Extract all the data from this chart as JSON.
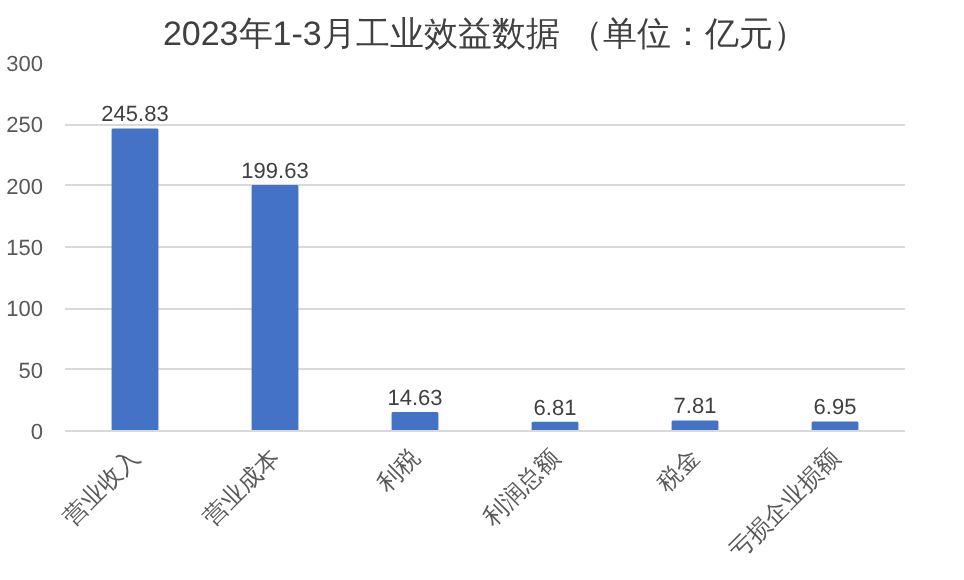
{
  "chart_data": {
    "type": "bar",
    "title": "2023年1-3月工业效益数据 （单位：亿元）",
    "categories": [
      "营业收入",
      "营业成本",
      "利税",
      "利润总额",
      "税金",
      "亏损企业损额"
    ],
    "values": [
      245.83,
      199.63,
      14.63,
      6.81,
      7.81,
      6.95
    ],
    "color": "#4472c4",
    "ylim": [
      0,
      300
    ],
    "yticks": [
      0,
      50,
      100,
      150,
      200,
      250,
      300
    ],
    "grid": "y",
    "data_labels": true
  }
}
